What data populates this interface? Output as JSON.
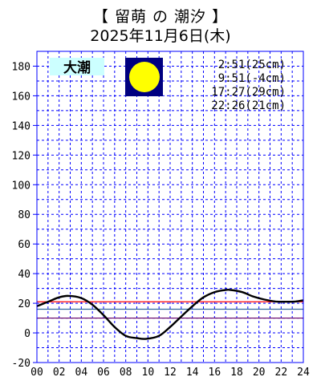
{
  "header": {
    "title": "【 留萌 の 潮汐 】",
    "date": "2025年11月6日(木)"
  },
  "badge": {
    "label": "大潮",
    "bg": "#ccffff"
  },
  "moon": {
    "phase": "full",
    "bg": "#000080",
    "fill": "#ffff00"
  },
  "tide_times": [
    "2:51(25cm)",
    "9:51(-4cm)",
    "17:27(29cm)",
    "22:26(21cm)"
  ],
  "colors": {
    "grid": "#0000ff",
    "axis": "#0000ff",
    "curve": "#000000",
    "line_red": "#ff0000",
    "line_steel": "#336699",
    "line_purple": "#660066"
  },
  "chart_data": {
    "type": "line",
    "xlim": [
      0,
      24
    ],
    "ylim": [
      -20,
      190
    ],
    "xticks": [
      "00",
      "02",
      "04",
      "06",
      "08",
      "10",
      "12",
      "14",
      "16",
      "18",
      "20",
      "22",
      "24"
    ],
    "yticks": [
      -20,
      0,
      20,
      40,
      60,
      80,
      100,
      120,
      140,
      160,
      180
    ],
    "grid": true,
    "series": [
      {
        "x": [
          0,
          1,
          2,
          2.85,
          4,
          5,
          6,
          7,
          8,
          9,
          9.85,
          11,
          12,
          13,
          14,
          15,
          16,
          17,
          17.45,
          18.5,
          19.5,
          20.5,
          21.5,
          22.43,
          23.3,
          24
        ],
        "y": [
          18,
          21,
          24,
          25,
          23.5,
          19,
          12,
          4,
          -2,
          -3.5,
          -4,
          -2,
          4,
          11,
          18,
          24,
          27.5,
          29,
          29,
          27.5,
          24.5,
          22.5,
          21.2,
          21,
          21.2,
          22
        ]
      }
    ],
    "reference_lines": [
      {
        "y": 21,
        "color": "#ff0000"
      },
      {
        "y": 16,
        "color": "#336699"
      },
      {
        "y": 10,
        "color": "#660066"
      }
    ]
  }
}
